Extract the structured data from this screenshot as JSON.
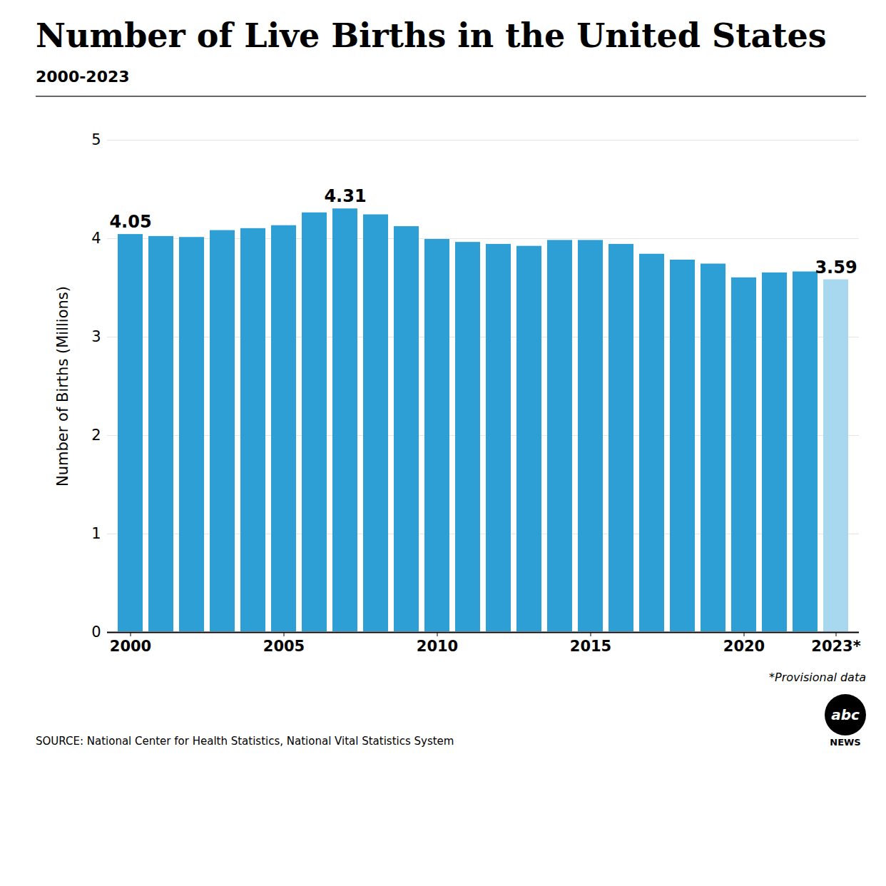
{
  "chart_data": {
    "type": "bar",
    "title": "Number of Live Births in the United States",
    "subtitle": "2000-2023",
    "ylabel": "Number of Births (Millions)",
    "note": "*Provisional data",
    "source": "SOURCE: National Center for Health Statistics, National Vital Statistics System",
    "logo": [
      "abc",
      "NEWS"
    ],
    "categories": [
      "2000",
      null,
      null,
      null,
      null,
      "2005",
      null,
      null,
      null,
      null,
      "2010",
      null,
      null,
      null,
      null,
      "2015",
      null,
      null,
      null,
      null,
      "2020",
      null,
      null,
      "2023*"
    ],
    "values": [
      4.05,
      4.03,
      4.02,
      4.09,
      4.11,
      4.14,
      4.27,
      4.31,
      4.25,
      4.13,
      4.0,
      3.97,
      3.95,
      3.93,
      3.99,
      3.99,
      3.95,
      3.85,
      3.79,
      3.75,
      3.61,
      3.66,
      3.67,
      3.59
    ],
    "value_labels": [
      "4.05",
      null,
      null,
      null,
      null,
      null,
      null,
      "4.31",
      null,
      null,
      null,
      null,
      null,
      null,
      null,
      null,
      null,
      null,
      null,
      null,
      null,
      null,
      null,
      "3.59"
    ],
    "data_labels": true,
    "colors": [
      "#2E9FD4",
      "#2E9FD4",
      "#2E9FD4",
      "#2E9FD4",
      "#2E9FD4",
      "#2E9FD4",
      "#2E9FD4",
      "#2E9FD4",
      "#2E9FD4",
      "#2E9FD4",
      "#2E9FD4",
      "#2E9FD4",
      "#2E9FD4",
      "#2E9FD4",
      "#2E9FD4",
      "#2E9FD4",
      "#2E9FD4",
      "#2E9FD4",
      "#2E9FD4",
      "#2E9FD4",
      "#2E9FD4",
      "#2E9FD4",
      "#2E9FD4",
      "#A8D8EF"
    ],
    "ylim": [
      0,
      5
    ],
    "yticks": [
      0,
      1,
      2,
      3,
      4,
      5
    ],
    "grid": true
  }
}
